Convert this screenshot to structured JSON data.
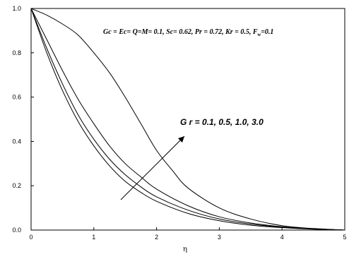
{
  "chart_data": {
    "type": "line",
    "title": "",
    "xlabel": "η",
    "ylabel": "",
    "xlim": [
      0,
      5
    ],
    "ylim": [
      0,
      1.0
    ],
    "x_ticks": [
      "0",
      "1",
      "2",
      "3",
      "4",
      "5"
    ],
    "y_ticks": [
      "0.0",
      "0.2",
      "0.4",
      "0.6",
      "0.8",
      "1.0"
    ],
    "grid": false,
    "parameters_text": "Gc = Ec= Q=M= 0.1, Sc= 0.62, Pr = 0.72, Kr = 0.5, F",
    "parameters_subscript": "w",
    "parameters_tail": "=0.1",
    "curve_annotation": "G r = 0.1, 0.5, 1.0, 3.0",
    "series": [
      {
        "x": [
          0,
          0.25,
          0.5,
          0.75,
          1.0,
          1.25,
          1.5,
          1.75,
          2.0,
          2.5,
          3.0,
          3.5,
          4.0,
          4.5,
          5.0
        ],
        "y": [
          1.0,
          0.8,
          0.63,
          0.49,
          0.38,
          0.29,
          0.22,
          0.17,
          0.13,
          0.075,
          0.042,
          0.022,
          0.011,
          0.004,
          0.0
        ]
      },
      {
        "x": [
          0,
          0.25,
          0.5,
          0.75,
          1.0,
          1.25,
          1.5,
          1.75,
          2.0,
          2.5,
          3.0,
          3.5,
          4.0,
          4.5,
          5.0
        ],
        "y": [
          1.0,
          0.82,
          0.66,
          0.52,
          0.41,
          0.32,
          0.25,
          0.195,
          0.15,
          0.09,
          0.05,
          0.027,
          0.013,
          0.005,
          0.0
        ]
      },
      {
        "x": [
          0,
          0.25,
          0.5,
          0.75,
          1.0,
          1.25,
          1.5,
          1.75,
          2.0,
          2.5,
          3.0,
          3.5,
          4.0,
          4.5,
          5.0
        ],
        "y": [
          1.0,
          0.86,
          0.72,
          0.59,
          0.48,
          0.38,
          0.3,
          0.24,
          0.185,
          0.11,
          0.06,
          0.032,
          0.015,
          0.006,
          0.0
        ]
      },
      {
        "x": [
          0,
          0.25,
          0.5,
          0.75,
          1.0,
          1.25,
          1.5,
          1.75,
          2.0,
          2.25,
          2.5,
          3.0,
          3.5,
          4.0,
          4.5,
          5.0
        ],
        "y": [
          1.0,
          0.97,
          0.93,
          0.88,
          0.8,
          0.71,
          0.6,
          0.48,
          0.36,
          0.27,
          0.19,
          0.1,
          0.05,
          0.02,
          0.007,
          0.0
        ]
      }
    ]
  }
}
